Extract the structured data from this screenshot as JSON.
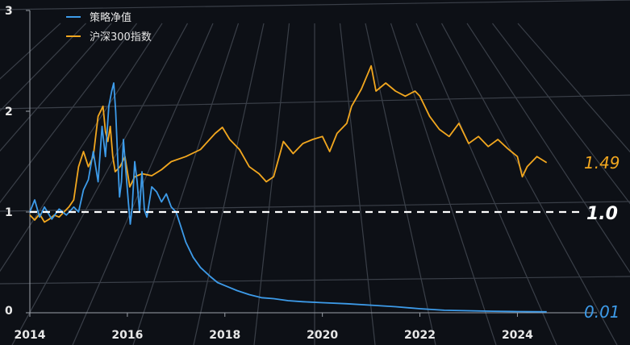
{
  "chart_data": {
    "type": "line",
    "title": "",
    "xlabel": "",
    "ylabel": "",
    "xlim": [
      2014,
      2025.3
    ],
    "ylim": [
      0,
      3
    ],
    "x_ticks": [
      "2014",
      "2016",
      "2018",
      "2020",
      "2022",
      "2024"
    ],
    "y_ticks": [
      "0",
      "1",
      "2",
      "3"
    ],
    "legend_position": "top-left",
    "grid": "perspective",
    "reference_line": {
      "y": 1.0,
      "label": "1.0",
      "style": "dashed",
      "color": "#ffffff"
    },
    "series": [
      {
        "name": "策略净值",
        "color": "#3d9be9",
        "end_label": "0.01",
        "points": [
          [
            2014.0,
            1.0
          ],
          [
            2014.1,
            1.12
          ],
          [
            2014.2,
            0.95
          ],
          [
            2014.3,
            1.05
          ],
          [
            2014.45,
            0.93
          ],
          [
            2014.6,
            1.03
          ],
          [
            2014.75,
            0.97
          ],
          [
            2014.9,
            1.05
          ],
          [
            2015.0,
            1.0
          ],
          [
            2015.1,
            1.22
          ],
          [
            2015.2,
            1.32
          ],
          [
            2015.3,
            1.6
          ],
          [
            2015.4,
            1.3
          ],
          [
            2015.48,
            1.85
          ],
          [
            2015.55,
            1.55
          ],
          [
            2015.62,
            2.05
          ],
          [
            2015.68,
            2.2
          ],
          [
            2015.72,
            2.28
          ],
          [
            2015.76,
            2.0
          ],
          [
            2015.8,
            1.55
          ],
          [
            2015.84,
            1.15
          ],
          [
            2015.88,
            1.3
          ],
          [
            2015.92,
            1.72
          ],
          [
            2015.97,
            1.4
          ],
          [
            2016.02,
            1.1
          ],
          [
            2016.06,
            0.88
          ],
          [
            2016.1,
            1.05
          ],
          [
            2016.15,
            1.5
          ],
          [
            2016.2,
            1.3
          ],
          [
            2016.25,
            1.0
          ],
          [
            2016.3,
            1.4
          ],
          [
            2016.35,
            1.02
          ],
          [
            2016.4,
            0.95
          ],
          [
            2016.5,
            1.25
          ],
          [
            2016.6,
            1.2
          ],
          [
            2016.7,
            1.1
          ],
          [
            2016.8,
            1.18
          ],
          [
            2016.9,
            1.05
          ],
          [
            2017.0,
            1.0
          ],
          [
            2017.08,
            0.88
          ],
          [
            2017.2,
            0.7
          ],
          [
            2017.35,
            0.55
          ],
          [
            2017.5,
            0.45
          ],
          [
            2017.7,
            0.36
          ],
          [
            2017.85,
            0.3
          ],
          [
            2018.0,
            0.27
          ],
          [
            2018.25,
            0.22
          ],
          [
            2018.5,
            0.18
          ],
          [
            2018.75,
            0.15
          ],
          [
            2019.0,
            0.14
          ],
          [
            2019.3,
            0.12
          ],
          [
            2019.6,
            0.11
          ],
          [
            2020.0,
            0.1
          ],
          [
            2020.5,
            0.09
          ],
          [
            2021.0,
            0.075
          ],
          [
            2021.5,
            0.06
          ],
          [
            2022.0,
            0.04
          ],
          [
            2022.5,
            0.025
          ],
          [
            2023.0,
            0.02
          ],
          [
            2023.5,
            0.015
          ],
          [
            2024.0,
            0.012
          ],
          [
            2024.6,
            0.01
          ]
        ]
      },
      {
        "name": "沪深300指数",
        "color": "#f2a71f",
        "end_label": "1.49",
        "points": [
          [
            2014.0,
            0.97
          ],
          [
            2014.1,
            0.92
          ],
          [
            2014.2,
            0.98
          ],
          [
            2014.3,
            0.9
          ],
          [
            2014.4,
            0.93
          ],
          [
            2014.5,
            0.97
          ],
          [
            2014.6,
            0.95
          ],
          [
            2014.7,
            1.0
          ],
          [
            2014.8,
            1.05
          ],
          [
            2014.9,
            1.12
          ],
          [
            2015.0,
            1.45
          ],
          [
            2015.1,
            1.6
          ],
          [
            2015.2,
            1.45
          ],
          [
            2015.3,
            1.55
          ],
          [
            2015.4,
            1.95
          ],
          [
            2015.5,
            2.05
          ],
          [
            2015.55,
            1.8
          ],
          [
            2015.6,
            1.7
          ],
          [
            2015.65,
            1.85
          ],
          [
            2015.7,
            1.55
          ],
          [
            2015.75,
            1.4
          ],
          [
            2015.85,
            1.45
          ],
          [
            2015.95,
            1.55
          ],
          [
            2016.05,
            1.25
          ],
          [
            2016.15,
            1.35
          ],
          [
            2016.3,
            1.38
          ],
          [
            2016.5,
            1.36
          ],
          [
            2016.7,
            1.42
          ],
          [
            2016.9,
            1.5
          ],
          [
            2017.2,
            1.55
          ],
          [
            2017.5,
            1.62
          ],
          [
            2017.8,
            1.78
          ],
          [
            2017.95,
            1.84
          ],
          [
            2018.1,
            1.72
          ],
          [
            2018.3,
            1.62
          ],
          [
            2018.5,
            1.45
          ],
          [
            2018.7,
            1.38
          ],
          [
            2018.85,
            1.3
          ],
          [
            2019.0,
            1.35
          ],
          [
            2019.2,
            1.7
          ],
          [
            2019.4,
            1.58
          ],
          [
            2019.6,
            1.68
          ],
          [
            2019.8,
            1.72
          ],
          [
            2020.0,
            1.75
          ],
          [
            2020.15,
            1.6
          ],
          [
            2020.3,
            1.78
          ],
          [
            2020.5,
            1.88
          ],
          [
            2020.6,
            2.05
          ],
          [
            2020.8,
            2.22
          ],
          [
            2021.0,
            2.45
          ],
          [
            2021.1,
            2.2
          ],
          [
            2021.3,
            2.28
          ],
          [
            2021.5,
            2.2
          ],
          [
            2021.7,
            2.15
          ],
          [
            2021.9,
            2.2
          ],
          [
            2022.0,
            2.15
          ],
          [
            2022.2,
            1.95
          ],
          [
            2022.4,
            1.82
          ],
          [
            2022.6,
            1.75
          ],
          [
            2022.8,
            1.88
          ],
          [
            2023.0,
            1.68
          ],
          [
            2023.2,
            1.75
          ],
          [
            2023.4,
            1.65
          ],
          [
            2023.6,
            1.72
          ],
          [
            2023.8,
            1.63
          ],
          [
            2024.0,
            1.55
          ],
          [
            2024.1,
            1.35
          ],
          [
            2024.2,
            1.45
          ],
          [
            2024.4,
            1.55
          ],
          [
            2024.6,
            1.49
          ]
        ]
      }
    ]
  }
}
